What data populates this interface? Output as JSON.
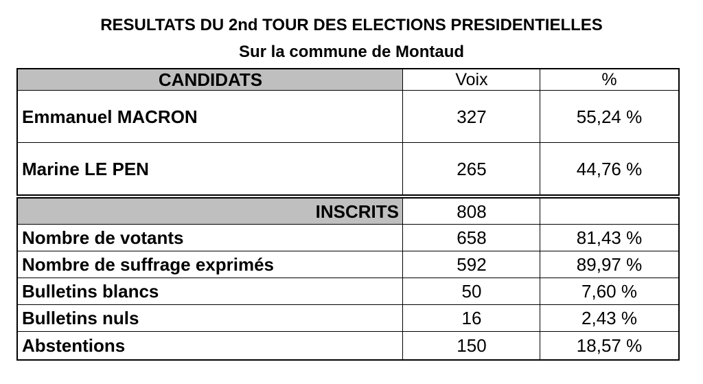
{
  "title": "RESULTATS DU 2nd TOUR DES ELECTIONS PRESIDENTIELLES",
  "subtitle": "Sur la commune de Montaud",
  "header": {
    "candidats": "CANDIDATS",
    "voix": "Voix",
    "pct": "%"
  },
  "candidates": [
    {
      "name": "Emmanuel MACRON",
      "voix": "327",
      "pct": "55,24 %"
    },
    {
      "name": "Marine LE PEN",
      "voix": "265",
      "pct": "44,76 %"
    }
  ],
  "inscrits": {
    "label": "INSCRITS",
    "voix": "808",
    "pct": ""
  },
  "stats": [
    {
      "label": "Nombre de votants",
      "voix": "658",
      "pct": "81,43 %"
    },
    {
      "label": "Nombre de suffrage exprimés",
      "voix": "592",
      "pct": "89,97 %"
    },
    {
      "label": "Bulletins blancs",
      "voix": "50",
      "pct": "7,60 %"
    },
    {
      "label": "Bulletins nuls",
      "voix": "16",
      "pct": "2,43 %"
    },
    {
      "label": "Abstentions",
      "voix": "150",
      "pct": "18,57 %"
    }
  ],
  "colors": {
    "header_fill": "#bfbfbf",
    "border": "#000000"
  }
}
